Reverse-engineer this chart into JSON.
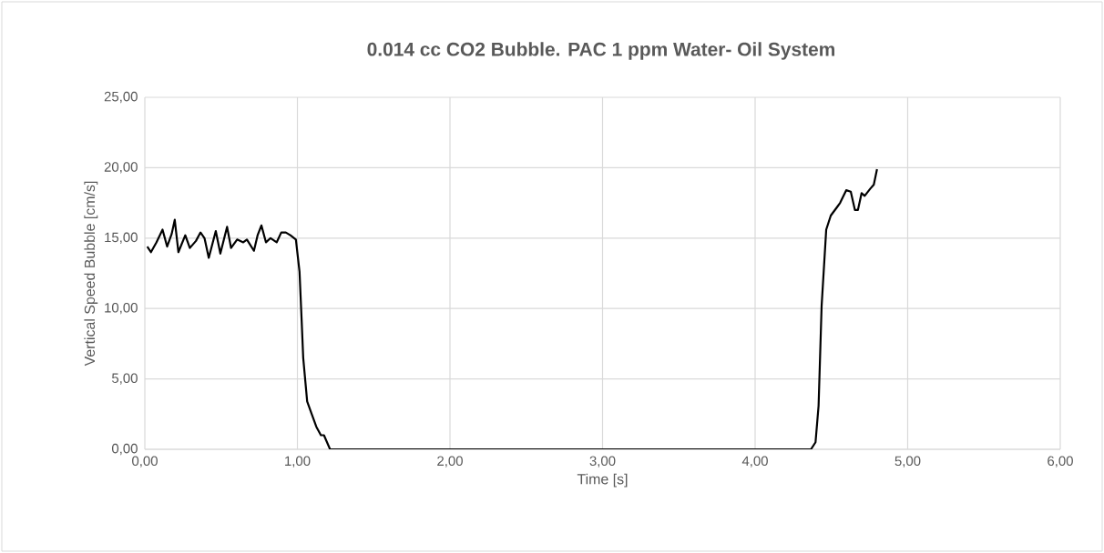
{
  "chart_data": {
    "type": "line",
    "title": "0.014 cc CO2 Bubble. PAC 1 ppm Water- Oil System",
    "xlabel": "Time [s]",
    "ylabel": "Vertical Speed Bubble [cm/s]",
    "xlim": [
      0,
      6
    ],
    "ylim": [
      0,
      25
    ],
    "xticks": [
      {
        "value": 0,
        "label": "0,00"
      },
      {
        "value": 1,
        "label": "1,00"
      },
      {
        "value": 2,
        "label": "2,00"
      },
      {
        "value": 3,
        "label": "3,00"
      },
      {
        "value": 4,
        "label": "4,00"
      },
      {
        "value": 5,
        "label": "5,00"
      },
      {
        "value": 6,
        "label": "6,00"
      }
    ],
    "yticks": [
      {
        "value": 0,
        "label": "0,00"
      },
      {
        "value": 5,
        "label": "5,00"
      },
      {
        "value": 10,
        "label": "10,00"
      },
      {
        "value": 15,
        "label": "15,00"
      },
      {
        "value": 20,
        "label": "20,00"
      },
      {
        "value": 25,
        "label": "25,00"
      }
    ],
    "grid": true,
    "marker": "none",
    "line_style": "solid",
    "series": [
      {
        "color": "#000000",
        "x": [
          0.016,
          0.04,
          0.076,
          0.116,
          0.146,
          0.176,
          0.196,
          0.22,
          0.265,
          0.295,
          0.335,
          0.365,
          0.391,
          0.419,
          0.465,
          0.495,
          0.539,
          0.565,
          0.605,
          0.645,
          0.669,
          0.715,
          0.739,
          0.764,
          0.794,
          0.824,
          0.864,
          0.894,
          0.924,
          0.954,
          0.99,
          1.014,
          1.028,
          1.038,
          1.064,
          1.094,
          1.124,
          1.154,
          1.174,
          1.214,
          4.366,
          4.396,
          4.416,
          4.436,
          4.466,
          4.496,
          4.537,
          4.557,
          4.597,
          4.627,
          4.654,
          4.674,
          4.698,
          4.718,
          4.754,
          4.778,
          4.799
        ],
        "values": [
          14.4,
          14.0,
          14.7,
          15.6,
          14.4,
          15.3,
          16.3,
          14.0,
          15.2,
          14.3,
          14.8,
          15.4,
          15.0,
          13.6,
          15.5,
          13.9,
          15.8,
          14.3,
          14.9,
          14.7,
          14.9,
          14.1,
          15.2,
          15.9,
          14.7,
          15.0,
          14.7,
          15.4,
          15.4,
          15.2,
          14.9,
          12.6,
          9.1,
          6.5,
          3.4,
          2.5,
          1.6,
          1.0,
          1.0,
          0,
          0,
          0.5,
          3.1,
          10.2,
          15.6,
          16.6,
          17.2,
          17.5,
          18.4,
          18.3,
          17.0,
          17.0,
          18.2,
          18.0,
          18.5,
          18.8,
          19.9
        ]
      }
    ]
  }
}
